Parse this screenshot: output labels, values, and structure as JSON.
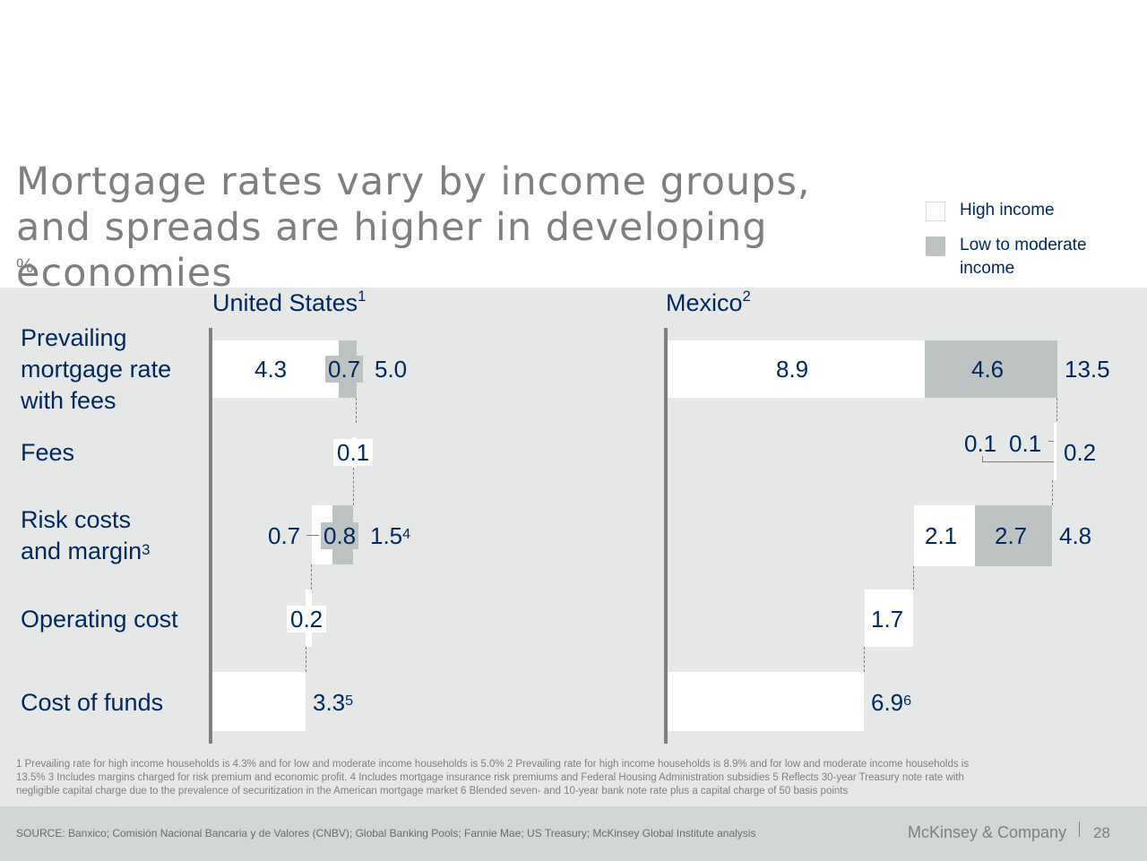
{
  "title": "Mortgage rates vary by income groups, and spreads are higher in developing economies",
  "unit": "%",
  "legend": [
    {
      "label": "High income",
      "color": "#ffffff"
    },
    {
      "label": "Low to moderate income",
      "color": "#bdc2c2"
    }
  ],
  "rows": [
    "Prevailing mortgage rate with fees",
    "Fees",
    "Risk costs and margin",
    "Operating cost",
    "Cost of funds"
  ],
  "row_footnotes": [
    "",
    "",
    "3",
    "",
    ""
  ],
  "chart_data": [
    {
      "type": "waterfall",
      "title": "United States",
      "title_footnote": "1",
      "categories": [
        "Cost of funds",
        "Operating cost",
        "Risk costs and margin",
        "Fees",
        "Prevailing mortgage rate with fees"
      ],
      "series": [
        {
          "name": "High income",
          "values": [
            3.3,
            0.2,
            0.7,
            0.1,
            4.3
          ]
        },
        {
          "name": "Low to moderate income",
          "values": [
            null,
            null,
            0.8,
            null,
            0.7
          ]
        }
      ],
      "totals": {
        "Risk costs and margin": 1.5,
        "Prevailing mortgage rate with fees": 5.0
      },
      "labels": {
        "cost_of_funds": "3.3",
        "cost_of_funds_note": "5",
        "operating_cost": "0.2",
        "risk_high": "0.7",
        "risk_low": "0.8",
        "risk_total": "1.5",
        "risk_total_note": "4",
        "fees": "0.1",
        "rate_high": "4.3",
        "rate_low": "0.7",
        "rate_total": "5.0"
      }
    },
    {
      "type": "waterfall",
      "title": "Mexico",
      "title_footnote": "2",
      "categories": [
        "Cost of funds",
        "Operating cost",
        "Risk costs and margin",
        "Fees",
        "Prevailing mortgage rate with fees"
      ],
      "series": [
        {
          "name": "High income",
          "values": [
            6.9,
            1.7,
            2.1,
            0.1,
            8.9
          ]
        },
        {
          "name": "Low to moderate income",
          "values": [
            null,
            null,
            2.7,
            0.1,
            4.6
          ]
        }
      ],
      "totals": {
        "Risk costs and margin": 4.8,
        "Fees": 0.2,
        "Prevailing mortgage rate with fees": 13.5
      },
      "labels": {
        "cost_of_funds": "6.9",
        "cost_of_funds_note": "6",
        "operating_cost": "1.7",
        "risk_high": "2.1",
        "risk_low": "2.7",
        "risk_total": "4.8",
        "fees_high": "0.1",
        "fees_low": "0.1",
        "fees_total": "0.2",
        "rate_high": "8.9",
        "rate_low": "4.6",
        "rate_total": "13.5"
      }
    }
  ],
  "footnotes": "1  Prevailing rate for high income households is 4.3% and  for low and moderate income households is 5.0%    2 Prevailing rate for high income households is 8.9% and  for low and moderate income households is\n    13.5%    3 Includes margins charged for risk premium and economic profit.    4 Includes mortgage insurance risk premiums and Federal Housing Administration subsidies    5 Reflects 30-year Treasury note rate with\n    negligible capital charge due to the prevalence of securitization in the American mortgage market    6 Blended seven- and 10-year bank note rate plus a capital charge of 50 basis points",
  "footer": {
    "source": "SOURCE: Banxico; Comisión Nacional Bancaria y de Valores (CNBV); Global Banking Pools; Fannie Mae; US Treasury; McKinsey Global Institute analysis",
    "brand": "McKinsey & Company",
    "page": "28"
  }
}
